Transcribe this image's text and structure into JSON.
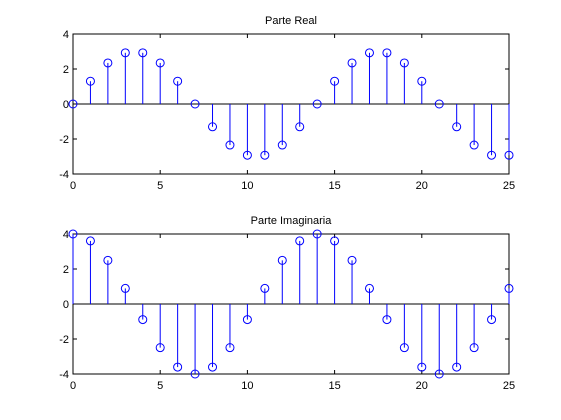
{
  "colors": {
    "background": "#ffffff",
    "axes": "#000000",
    "series": "#0000ff"
  },
  "chart_data": [
    {
      "type": "stem",
      "title": "Parte Real",
      "xlabel": "",
      "ylabel": "",
      "xlim": [
        0,
        25
      ],
      "ylim": [
        -4,
        4
      ],
      "xticks": [
        0,
        5,
        10,
        15,
        20,
        25
      ],
      "yticks": [
        -4,
        -2,
        0,
        2,
        4
      ],
      "x": [
        0,
        1,
        2,
        3,
        4,
        5,
        6,
        7,
        8,
        9,
        10,
        11,
        12,
        13,
        14,
        15,
        16,
        17,
        18,
        19,
        20,
        21,
        22,
        23,
        24,
        25
      ],
      "y": [
        0,
        1.302,
        2.346,
        2.925,
        2.925,
        2.346,
        1.302,
        0,
        -1.302,
        -2.346,
        -2.925,
        -2.925,
        -2.346,
        -1.302,
        0,
        1.302,
        2.346,
        2.925,
        2.925,
        2.346,
        1.302,
        0,
        -1.302,
        -2.346,
        -2.925,
        -2.925
      ],
      "grid": false,
      "marker": "circle"
    },
    {
      "type": "stem",
      "title": "Parte Imaginaria",
      "xlabel": "",
      "ylabel": "",
      "xlim": [
        0,
        25
      ],
      "ylim": [
        -4,
        4
      ],
      "xticks": [
        0,
        5,
        10,
        15,
        20,
        25
      ],
      "yticks": [
        -4,
        -2,
        0,
        2,
        4
      ],
      "x": [
        0,
        1,
        2,
        3,
        4,
        5,
        6,
        7,
        8,
        9,
        10,
        11,
        12,
        13,
        14,
        15,
        16,
        17,
        18,
        19,
        20,
        21,
        22,
        23,
        24,
        25
      ],
      "y": [
        4,
        3.604,
        2.494,
        0.89,
        -0.89,
        -2.494,
        -3.604,
        -4,
        -3.604,
        -2.494,
        -0.89,
        0.89,
        2.494,
        3.604,
        4,
        3.604,
        2.494,
        0.89,
        -0.89,
        -2.494,
        -3.604,
        -4,
        -3.604,
        -2.494,
        -0.89,
        0.89
      ],
      "grid": false,
      "marker": "circle"
    }
  ]
}
